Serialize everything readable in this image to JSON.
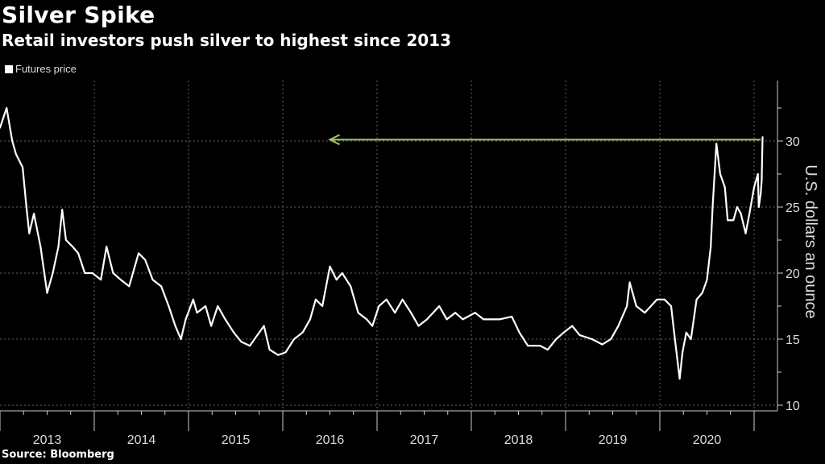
{
  "chart_data": {
    "type": "line",
    "title": "Silver Spike",
    "subtitle": "Retail investors push silver to highest since 2013",
    "legend": [
      "Futures price"
    ],
    "legend_placement": "top-left",
    "xlabel": "",
    "ylabel": "U.S. dollars an ounce",
    "source": "Source: Bloomberg",
    "ylim": [
      10,
      34.6
    ],
    "xlim": [
      2013.0,
      2021.25
    ],
    "yticks": [
      10,
      15,
      20,
      25,
      30
    ],
    "xtick_labels": [
      "2013",
      "2014",
      "2015",
      "2016",
      "2017",
      "2018",
      "2019",
      "2020"
    ],
    "grid": true,
    "series": [
      {
        "name": "Futures price",
        "color": "#ffffff",
        "points": [
          [
            2013.0,
            31
          ],
          [
            2013.07,
            32.5
          ],
          [
            2013.13,
            30
          ],
          [
            2013.17,
            29
          ],
          [
            2013.24,
            28
          ],
          [
            2013.28,
            25
          ],
          [
            2013.31,
            23
          ],
          [
            2013.36,
            24.5
          ],
          [
            2013.43,
            22
          ],
          [
            2013.47,
            20
          ],
          [
            2013.5,
            18.5
          ],
          [
            2013.56,
            20
          ],
          [
            2013.62,
            22
          ],
          [
            2013.66,
            24.8
          ],
          [
            2013.7,
            22.5
          ],
          [
            2013.77,
            22
          ],
          [
            2013.83,
            21.5
          ],
          [
            2013.9,
            20
          ],
          [
            2013.98,
            20
          ],
          [
            2014.07,
            19.5
          ],
          [
            2014.13,
            22
          ],
          [
            2014.2,
            20
          ],
          [
            2014.28,
            19.5
          ],
          [
            2014.37,
            19
          ],
          [
            2014.47,
            21.5
          ],
          [
            2014.54,
            21
          ],
          [
            2014.62,
            19.5
          ],
          [
            2014.71,
            19
          ],
          [
            2014.79,
            17.5
          ],
          [
            2014.86,
            16
          ],
          [
            2014.92,
            15
          ],
          [
            2014.97,
            16.5
          ],
          [
            2015.05,
            18
          ],
          [
            2015.09,
            17
          ],
          [
            2015.18,
            17.5
          ],
          [
            2015.24,
            16
          ],
          [
            2015.31,
            17.5
          ],
          [
            2015.39,
            16.5
          ],
          [
            2015.48,
            15.5
          ],
          [
            2015.56,
            14.8
          ],
          [
            2015.65,
            14.5
          ],
          [
            2015.72,
            15.2
          ],
          [
            2015.8,
            16
          ],
          [
            2015.86,
            14.2
          ],
          [
            2015.95,
            13.8
          ],
          [
            2016.03,
            14
          ],
          [
            2016.12,
            15
          ],
          [
            2016.21,
            15.5
          ],
          [
            2016.29,
            16.5
          ],
          [
            2016.35,
            18
          ],
          [
            2016.42,
            17.5
          ],
          [
            2016.5,
            20.5
          ],
          [
            2016.57,
            19.5
          ],
          [
            2016.63,
            20
          ],
          [
            2016.72,
            19
          ],
          [
            2016.8,
            17
          ],
          [
            2016.89,
            16.5
          ],
          [
            2016.95,
            16
          ],
          [
            2017.02,
            17.5
          ],
          [
            2017.1,
            18
          ],
          [
            2017.19,
            17
          ],
          [
            2017.27,
            18
          ],
          [
            2017.36,
            17
          ],
          [
            2017.44,
            16
          ],
          [
            2017.53,
            16.5
          ],
          [
            2017.66,
            17.5
          ],
          [
            2017.74,
            16.5
          ],
          [
            2017.83,
            17
          ],
          [
            2017.91,
            16.5
          ],
          [
            2018.04,
            17
          ],
          [
            2018.13,
            16.5
          ],
          [
            2018.3,
            16.5
          ],
          [
            2018.43,
            16.7
          ],
          [
            2018.51,
            15.5
          ],
          [
            2018.6,
            14.5
          ],
          [
            2018.73,
            14.5
          ],
          [
            2018.81,
            14.2
          ],
          [
            2018.9,
            15
          ],
          [
            2018.98,
            15.5
          ],
          [
            2019.07,
            16
          ],
          [
            2019.15,
            15.3
          ],
          [
            2019.28,
            15
          ],
          [
            2019.39,
            14.6
          ],
          [
            2019.48,
            15
          ],
          [
            2019.56,
            16
          ],
          [
            2019.65,
            17.5
          ],
          [
            2019.68,
            19.3
          ],
          [
            2019.75,
            17.5
          ],
          [
            2019.84,
            17
          ],
          [
            2019.97,
            18
          ],
          [
            2020.05,
            18
          ],
          [
            2020.12,
            17.5
          ],
          [
            2020.16,
            15
          ],
          [
            2020.21,
            12
          ],
          [
            2020.24,
            14
          ],
          [
            2020.28,
            15.5
          ],
          [
            2020.33,
            15
          ],
          [
            2020.39,
            18
          ],
          [
            2020.45,
            18.5
          ],
          [
            2020.5,
            19.5
          ],
          [
            2020.54,
            22
          ],
          [
            2020.56,
            25
          ],
          [
            2020.6,
            29.8
          ],
          [
            2020.64,
            27.5
          ],
          [
            2020.69,
            26.5
          ],
          [
            2020.72,
            24
          ],
          [
            2020.78,
            24
          ],
          [
            2020.82,
            25
          ],
          [
            2020.86,
            24.5
          ],
          [
            2020.91,
            23
          ],
          [
            2020.95,
            24.5
          ],
          [
            2021.0,
            26.5
          ],
          [
            2021.04,
            27.5
          ],
          [
            2021.05,
            25
          ],
          [
            2021.07,
            26
          ],
          [
            2021.08,
            27
          ],
          [
            2021.09,
            30.3
          ]
        ]
      }
    ],
    "annotations": [
      {
        "type": "arrow",
        "color": "#a4c86a",
        "y": 30.1,
        "from_x": 2021.07,
        "to_x": 2016.5
      }
    ]
  }
}
